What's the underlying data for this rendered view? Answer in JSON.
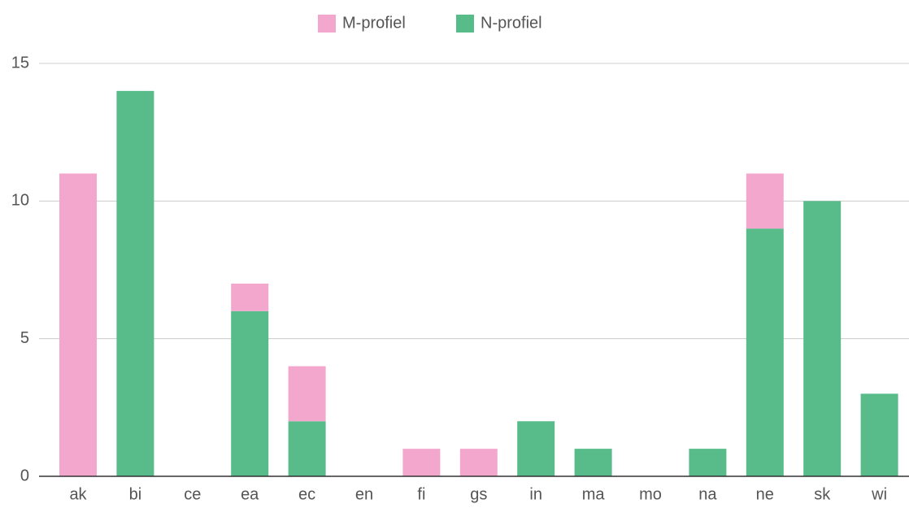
{
  "chart_data": {
    "type": "stacked_bar",
    "categories": [
      "ak",
      "bi",
      "ce",
      "ea",
      "ec",
      "en",
      "fi",
      "gs",
      "in",
      "ma",
      "mo",
      "na",
      "ne",
      "sk",
      "wi"
    ],
    "series": [
      {
        "name": "M-profiel",
        "color": "#f4a7cd",
        "values": [
          11,
          0,
          0,
          1,
          2,
          0,
          1,
          1,
          0,
          0,
          0,
          0,
          2,
          0,
          0
        ]
      },
      {
        "name": "N-profiel",
        "color": "#57bb8a",
        "values": [
          0,
          14,
          0,
          6,
          2,
          0,
          0,
          0,
          2,
          1,
          0,
          1,
          9,
          10,
          3
        ]
      }
    ],
    "ylim": [
      0,
      15
    ],
    "yticks": [
      0,
      5,
      10,
      15
    ],
    "grid": true,
    "legend": "top"
  }
}
